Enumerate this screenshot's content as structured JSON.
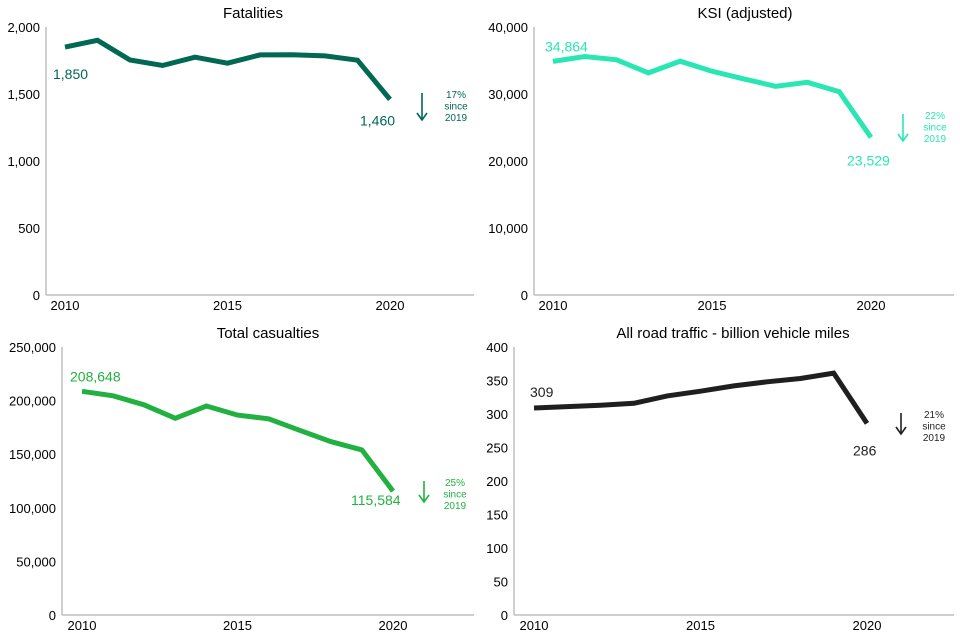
{
  "chart_data": [
    {
      "id": "fatalities",
      "type": "line",
      "title": "Fatalities",
      "xlabel": "",
      "ylabel": "",
      "color": "#006853",
      "x": [
        2010,
        2011,
        2012,
        2013,
        2014,
        2015,
        2016,
        2017,
        2018,
        2019,
        2020
      ],
      "values": [
        1850,
        1901,
        1754,
        1713,
        1775,
        1730,
        1792,
        1793,
        1784,
        1752,
        1460
      ],
      "ylim": [
        0,
        2000
      ],
      "yticks": [
        0,
        500,
        1000,
        1500,
        2000
      ],
      "ytick_labels": [
        "0",
        "500",
        "1,000",
        "1,500",
        "2,000"
      ],
      "xticks": [
        2010,
        2015,
        2020
      ],
      "xtick_labels": [
        "2010",
        "2015",
        "2020"
      ],
      "grid": false,
      "start_label": "1,850",
      "end_label": "1,460",
      "change_note": [
        "17%",
        "since",
        "2019"
      ],
      "change_direction": "down"
    },
    {
      "id": "ksi",
      "type": "line",
      "title": "KSI (adjusted)",
      "xlabel": "",
      "ylabel": "",
      "color": "#2ae6b4",
      "x": [
        2010,
        2011,
        2012,
        2013,
        2014,
        2015,
        2016,
        2017,
        2018,
        2019,
        2020
      ],
      "values": [
        34864,
        35600,
        35100,
        33150,
        34900,
        33400,
        32250,
        31150,
        31750,
        30350,
        23529
      ],
      "ylim": [
        0,
        40000
      ],
      "yticks": [
        0,
        10000,
        20000,
        30000,
        40000
      ],
      "ytick_labels": [
        "0",
        "10,000",
        "20,000",
        "30,000",
        "40,000"
      ],
      "xticks": [
        2010,
        2015,
        2020
      ],
      "xtick_labels": [
        "2010",
        "2015",
        "2020"
      ],
      "grid": false,
      "start_label": "34,864",
      "end_label": "23,529",
      "change_note": [
        "22%",
        "since",
        "2019"
      ],
      "change_direction": "down"
    },
    {
      "id": "casualties",
      "type": "line",
      "title": "Total casualties",
      "xlabel": "",
      "ylabel": "",
      "color": "#22b140",
      "x": [
        2010,
        2011,
        2012,
        2013,
        2014,
        2015,
        2016,
        2017,
        2018,
        2019,
        2020
      ],
      "values": [
        208648,
        204500,
        196000,
        183500,
        195000,
        186500,
        183000,
        172300,
        161800,
        154000,
        115584
      ],
      "ylim": [
        0,
        250000
      ],
      "yticks": [
        0,
        50000,
        100000,
        150000,
        200000,
        250000
      ],
      "ytick_labels": [
        "0",
        "50,000",
        "100,000",
        "150,000",
        "200,000",
        "250,000"
      ],
      "xticks": [
        2010,
        2015,
        2020
      ],
      "xtick_labels": [
        "2010",
        "2015",
        "2020"
      ],
      "grid": false,
      "start_label": "208,648",
      "end_label": "115,584",
      "change_note": [
        "25%",
        "since",
        "2019"
      ],
      "change_direction": "down"
    },
    {
      "id": "traffic",
      "type": "line",
      "title": "All road traffic - billion vehicle miles",
      "xlabel": "",
      "ylabel": "",
      "color": "#1f1f1f",
      "x": [
        2010,
        2011,
        2012,
        2013,
        2014,
        2015,
        2016,
        2017,
        2018,
        2019,
        2020
      ],
      "values": [
        309,
        311,
        313,
        316,
        327,
        334,
        342,
        348,
        353,
        361,
        286
      ],
      "ylim": [
        0,
        400
      ],
      "yticks": [
        0,
        50,
        100,
        150,
        200,
        250,
        300,
        350,
        400
      ],
      "ytick_labels": [
        "0",
        "50",
        "100",
        "150",
        "200",
        "250",
        "300",
        "350",
        "400"
      ],
      "xticks": [
        2010,
        2015,
        2020
      ],
      "xtick_labels": [
        "2010",
        "2015",
        "2020"
      ],
      "grid": false,
      "start_label": "309",
      "end_label": "286",
      "change_note": [
        "21%",
        "since",
        "2019"
      ],
      "change_direction": "down"
    }
  ]
}
